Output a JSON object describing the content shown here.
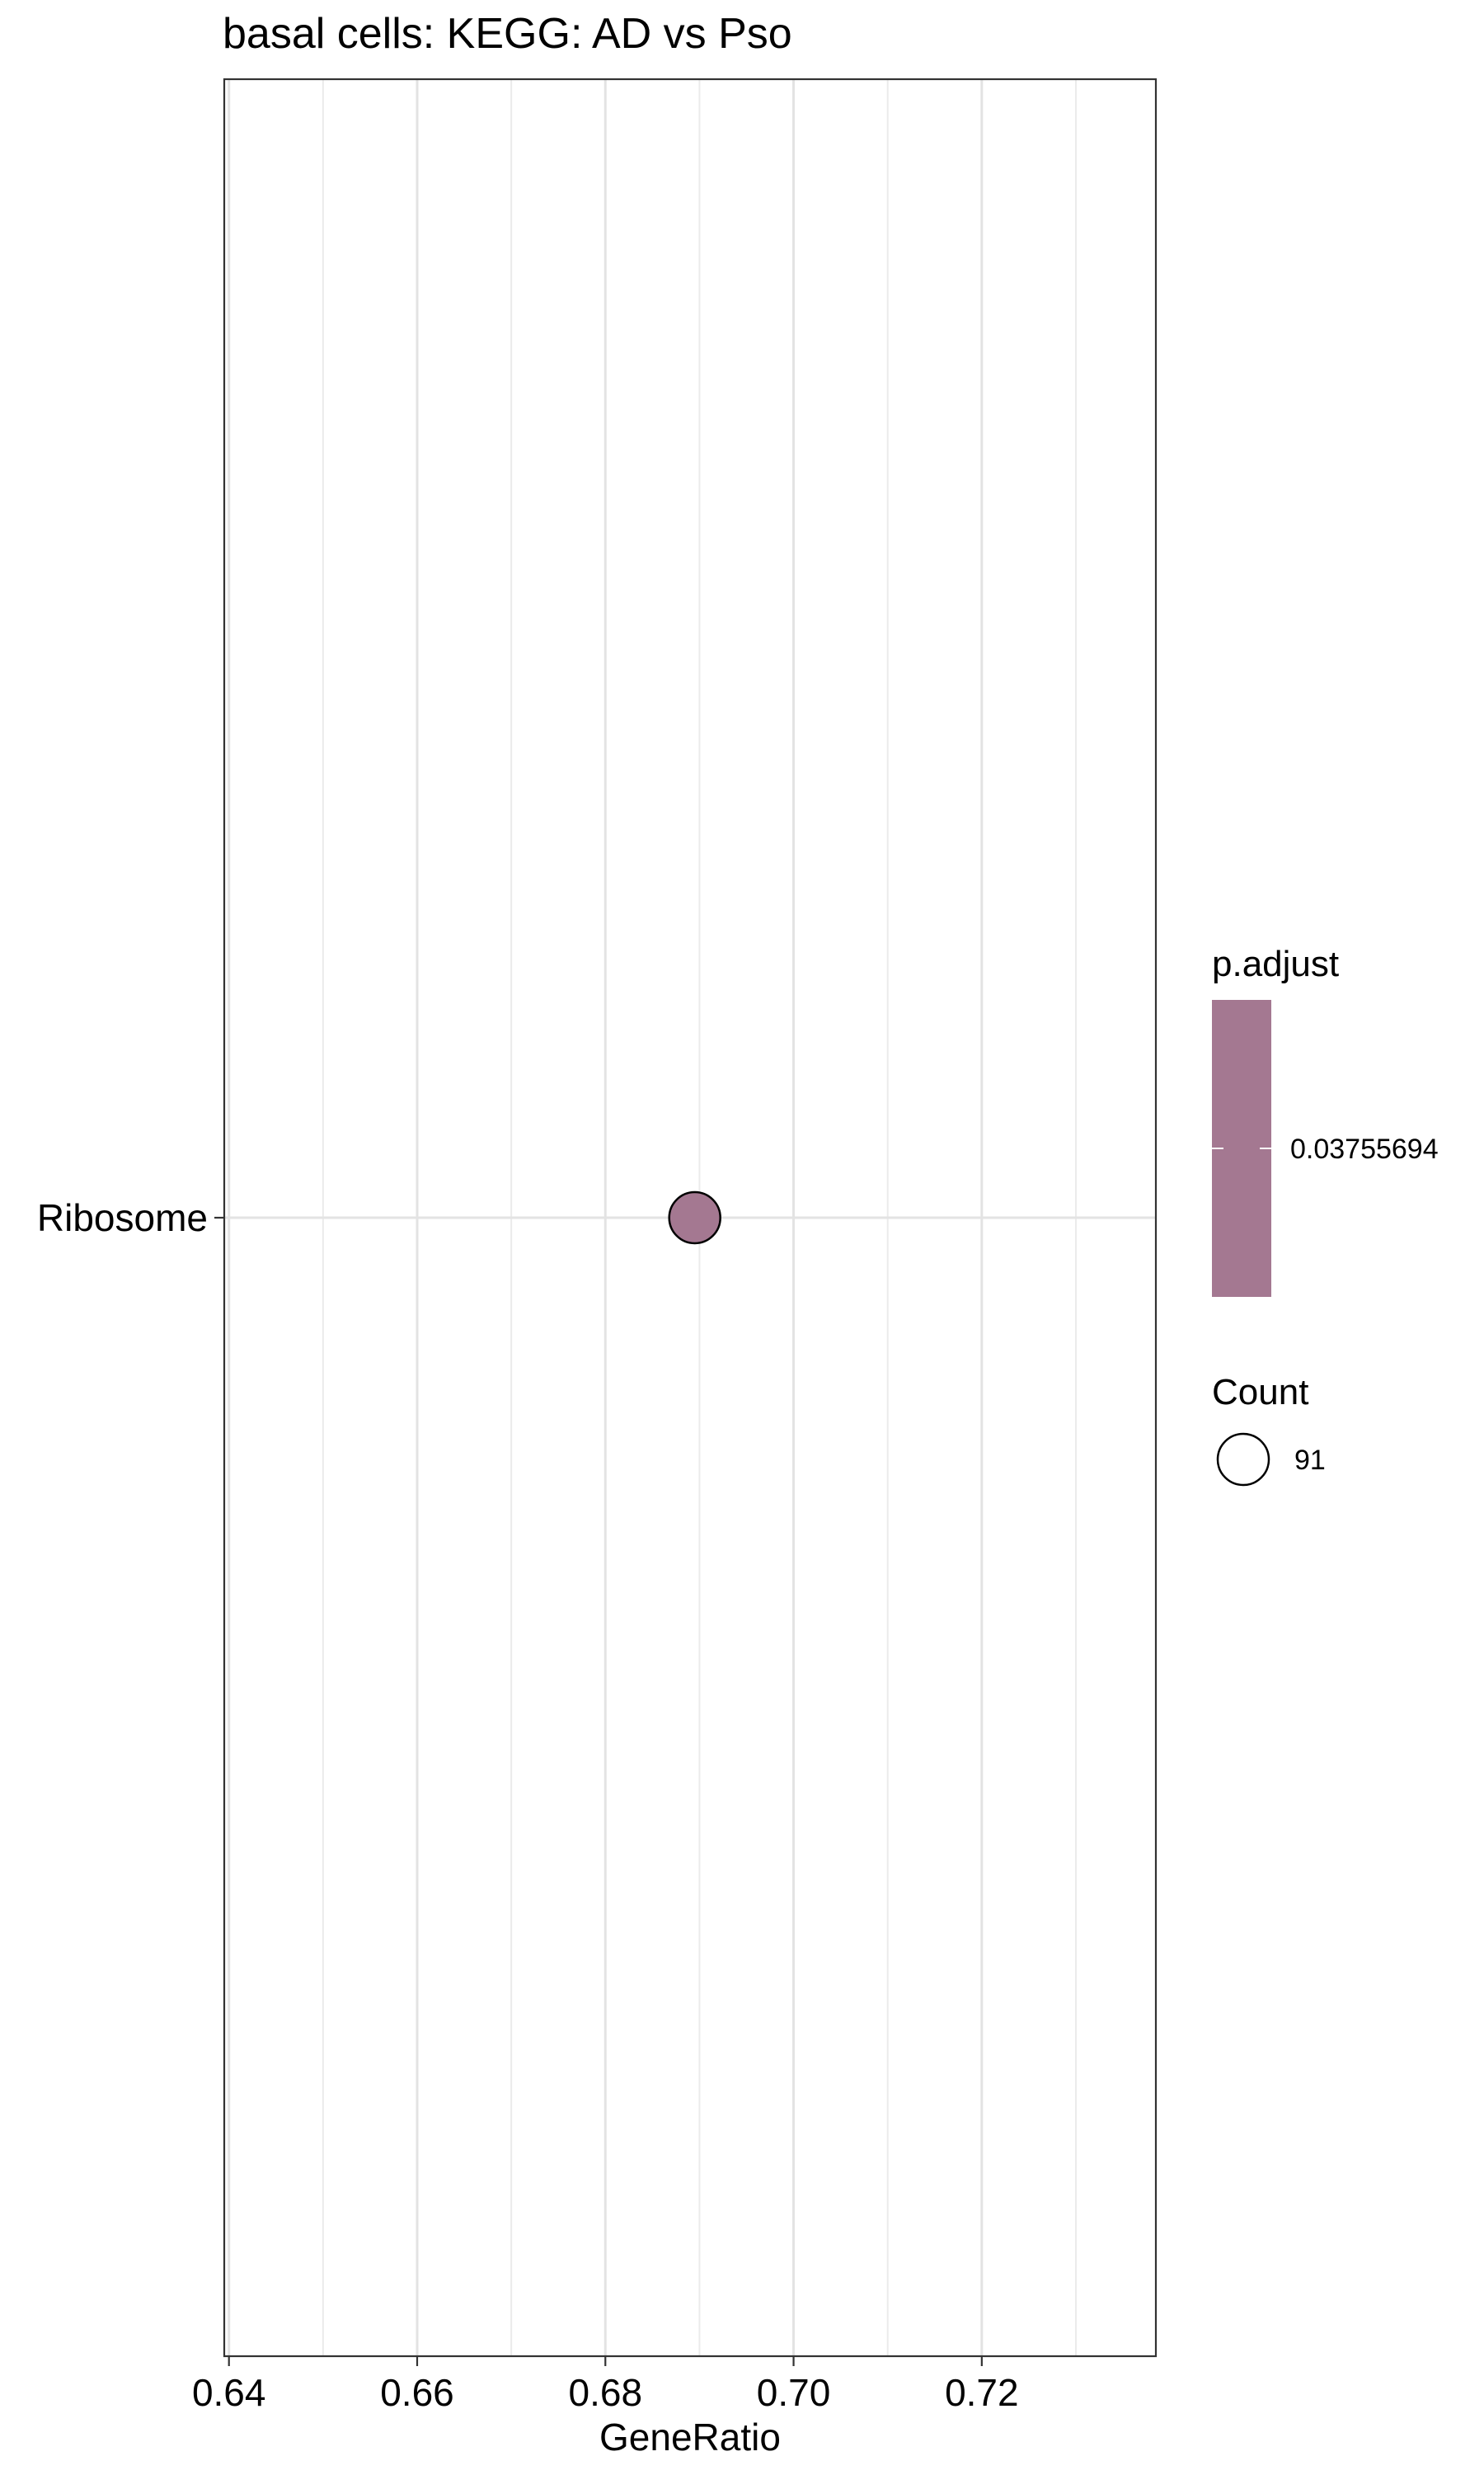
{
  "chart_data": {
    "type": "scatter",
    "title": "basal cells: KEGG: AD vs Pso",
    "xlabel": "GeneRatio",
    "ylabel": "",
    "xlim": [
      0.6395,
      0.7385
    ],
    "x_ticks": [
      "0.64",
      "0.66",
      "0.68",
      "0.70",
      "0.72"
    ],
    "x_tick_values": [
      0.64,
      0.66,
      0.68,
      0.7,
      0.72
    ],
    "x_minor_gridlines": [
      0.65,
      0.67,
      0.69,
      0.71,
      0.73
    ],
    "categories": [
      "Ribosome"
    ],
    "grid": true,
    "points": [
      {
        "category": "Ribosome",
        "x": 0.6895,
        "count": 91,
        "p_adjust": 0.03755694
      }
    ],
    "point_color": "#A47891",
    "legend_position": "right",
    "legend": {
      "color_title": "p.adjust",
      "color_label": "0.03755694",
      "size_title": "Count",
      "size_label": "91"
    }
  }
}
